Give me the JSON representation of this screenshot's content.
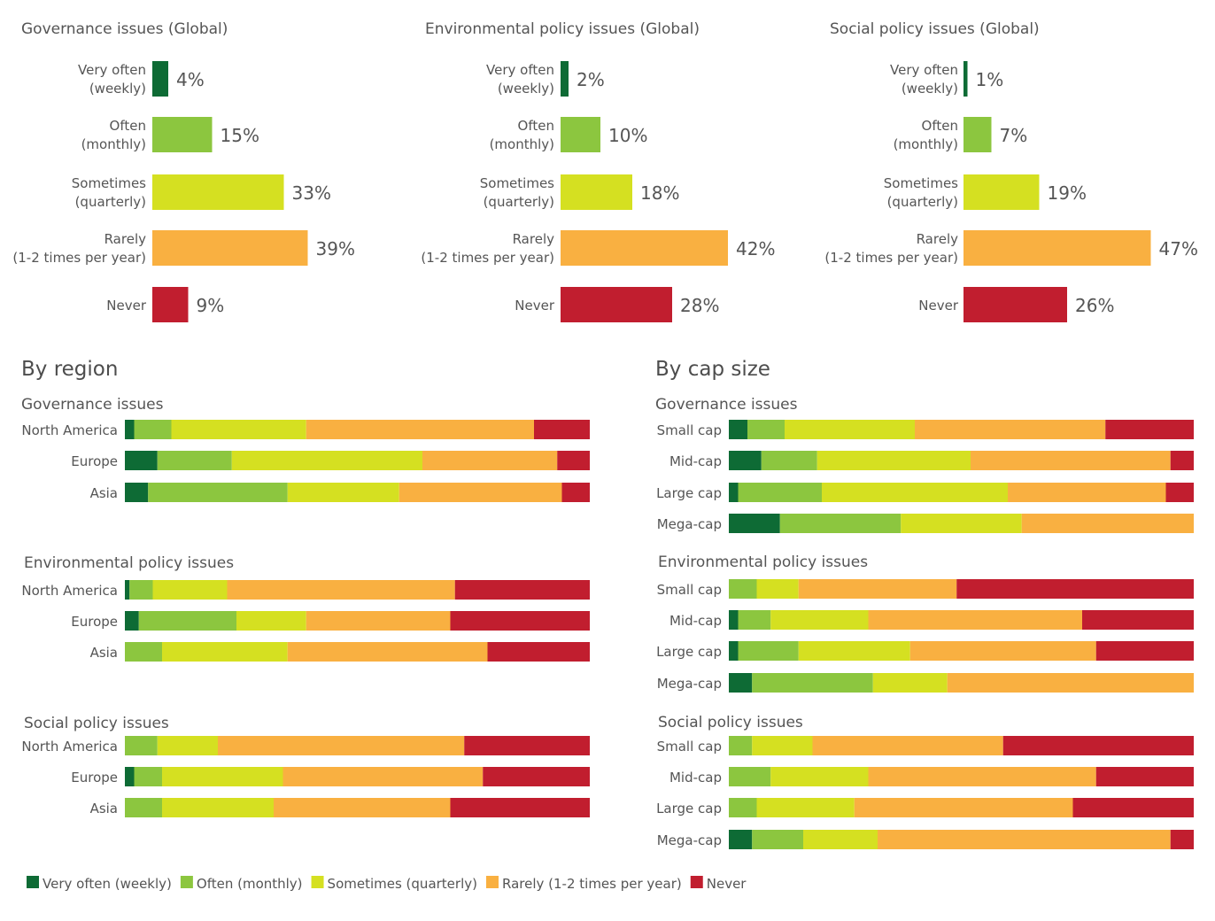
{
  "colors": {
    "very_often": "#0e6b35",
    "often": "#8cc63f",
    "sometimes": "#d5e021",
    "rarely": "#f9b041",
    "never": "#c11e2f",
    "text": "#555555",
    "heading": "#4d4d4d"
  },
  "chart_data": [
    {
      "type": "bar",
      "orientation": "horizontal",
      "title": "Governance issues (Global)",
      "categories": [
        "Very often (weekly)",
        "Often (monthly)",
        "Sometimes (quarterly)",
        "Rarely (1-2 times per year)",
        "Never"
      ],
      "category_lines": [
        [
          "Very often",
          "(weekly)"
        ],
        [
          "Often",
          "(monthly)"
        ],
        [
          "Sometimes",
          "(quarterly)"
        ],
        [
          "Rarely",
          "(1-2 times per year)"
        ],
        [
          "Never"
        ]
      ],
      "values": [
        4,
        15,
        33,
        39,
        9
      ],
      "value_labels": [
        "4%",
        "15%",
        "33%",
        "39%",
        "9%"
      ]
    },
    {
      "type": "bar",
      "orientation": "horizontal",
      "title": "Environmental policy issues (Global)",
      "categories": [
        "Very often (weekly)",
        "Often (monthly)",
        "Sometimes (quarterly)",
        "Rarely (1-2 times per year)",
        "Never"
      ],
      "category_lines": [
        [
          "Very often",
          "(weekly)"
        ],
        [
          "Often",
          "(monthly)"
        ],
        [
          "Sometimes",
          "(quarterly)"
        ],
        [
          "Rarely",
          "(1-2 times per year)"
        ],
        [
          "Never"
        ]
      ],
      "values": [
        2,
        10,
        18,
        42,
        28
      ],
      "value_labels": [
        "2%",
        "10%",
        "18%",
        "42%",
        "28%"
      ]
    },
    {
      "type": "bar",
      "orientation": "horizontal",
      "title": "Social policy issues (Global)",
      "categories": [
        "Very often (weekly)",
        "Often (monthly)",
        "Sometimes (quarterly)",
        "Rarely (1-2 times per year)",
        "Never"
      ],
      "category_lines": [
        [
          "Very often",
          "(weekly)"
        ],
        [
          "Often",
          "(monthly)"
        ],
        [
          "Sometimes",
          "(quarterly)"
        ],
        [
          "Rarely",
          "(1-2 times per year)"
        ],
        [
          "Never"
        ]
      ],
      "values": [
        1,
        7,
        19,
        47,
        26
      ],
      "value_labels": [
        "1%",
        "7%",
        "19%",
        "47%",
        "26%"
      ]
    },
    {
      "type": "bar",
      "orientation": "horizontal",
      "stacked": true,
      "percent_stacked": true,
      "title": "By region",
      "groups": [
        {
          "subtitle": "Governance issues",
          "categories": [
            "North America",
            "Europe",
            "Asia"
          ],
          "series": [
            {
              "name": "Very often (weekly)",
              "values": [
                2,
                7,
                5
              ]
            },
            {
              "name": "Often (monthly)",
              "values": [
                8,
                16,
                30
              ]
            },
            {
              "name": "Sometimes (quarterly)",
              "values": [
                29,
                41,
                24
              ]
            },
            {
              "name": "Rarely (1-2 times per year)",
              "values": [
                49,
                29,
                35
              ]
            },
            {
              "name": "Never",
              "values": [
                12,
                7,
                6
              ]
            }
          ]
        },
        {
          "subtitle": "Environmental policy issues",
          "categories": [
            "North America",
            "Europe",
            "Asia"
          ],
          "series": [
            {
              "name": "Very often (weekly)",
              "values": [
                1,
                3,
                0
              ]
            },
            {
              "name": "Often (monthly)",
              "values": [
                5,
                21,
                8
              ]
            },
            {
              "name": "Sometimes (quarterly)",
              "values": [
                16,
                15,
                27
              ]
            },
            {
              "name": "Rarely (1-2 times per year)",
              "values": [
                49,
                31,
                43
              ]
            },
            {
              "name": "Never",
              "values": [
                29,
                30,
                22
              ]
            }
          ]
        },
        {
          "subtitle": "Social policy issues",
          "categories": [
            "North America",
            "Europe",
            "Asia"
          ],
          "series": [
            {
              "name": "Very often (weekly)",
              "values": [
                0,
                2,
                0
              ]
            },
            {
              "name": "Often (monthly)",
              "values": [
                7,
                6,
                8
              ]
            },
            {
              "name": "Sometimes (quarterly)",
              "values": [
                13,
                26,
                24
              ]
            },
            {
              "name": "Rarely (1-2 times per year)",
              "values": [
                53,
                43,
                38
              ]
            },
            {
              "name": "Never",
              "values": [
                27,
                23,
                30
              ]
            }
          ]
        }
      ]
    },
    {
      "type": "bar",
      "orientation": "horizontal",
      "stacked": true,
      "percent_stacked": true,
      "title": "By cap size",
      "groups": [
        {
          "subtitle": "Governance issues",
          "categories": [
            "Small cap",
            "Mid-cap",
            "Large cap",
            "Mega-cap"
          ],
          "series": [
            {
              "name": "Very often (weekly)",
              "values": [
                4,
                7,
                2,
                11
              ]
            },
            {
              "name": "Often (monthly)",
              "values": [
                8,
                12,
                18,
                26
              ]
            },
            {
              "name": "Sometimes (quarterly)",
              "values": [
                28,
                33,
                40,
                26
              ]
            },
            {
              "name": "Rarely (1-2 times per year)",
              "values": [
                41,
                43,
                34,
                37
              ]
            },
            {
              "name": "Never",
              "values": [
                19,
                5,
                6,
                0
              ]
            }
          ]
        },
        {
          "subtitle": "Environmental policy issues",
          "categories": [
            "Small cap",
            "Mid-cap",
            "Large cap",
            "Mega-cap"
          ],
          "series": [
            {
              "name": "Very often (weekly)",
              "values": [
                0,
                2,
                2,
                5
              ]
            },
            {
              "name": "Often (monthly)",
              "values": [
                6,
                7,
                13,
                26
              ]
            },
            {
              "name": "Sometimes (quarterly)",
              "values": [
                9,
                21,
                24,
                16
              ]
            },
            {
              "name": "Rarely (1-2 times per year)",
              "values": [
                34,
                46,
                40,
                53
              ]
            },
            {
              "name": "Never",
              "values": [
                51,
                24,
                21,
                0
              ]
            }
          ]
        },
        {
          "subtitle": "Social policy issues",
          "categories": [
            "Small cap",
            "Mid-cap",
            "Large cap",
            "Mega-cap"
          ],
          "series": [
            {
              "name": "Very often (weekly)",
              "values": [
                0,
                0,
                0,
                5
              ]
            },
            {
              "name": "Often (monthly)",
              "values": [
                5,
                9,
                6,
                11
              ]
            },
            {
              "name": "Sometimes (quarterly)",
              "values": [
                13,
                21,
                21,
                16
              ]
            },
            {
              "name": "Rarely (1-2 times per year)",
              "values": [
                41,
                49,
                47,
                63
              ]
            },
            {
              "name": "Never",
              "values": [
                41,
                21,
                26,
                5
              ]
            }
          ]
        }
      ]
    }
  ],
  "legend": [
    {
      "label": "Very often (weekly)",
      "key": "very_often"
    },
    {
      "label": "Often (monthly)",
      "key": "often"
    },
    {
      "label": "Sometimes (quarterly)",
      "key": "sometimes"
    },
    {
      "label": "Rarely (1-2 times per year)",
      "key": "rarely"
    },
    {
      "label": "Never",
      "key": "never"
    }
  ]
}
